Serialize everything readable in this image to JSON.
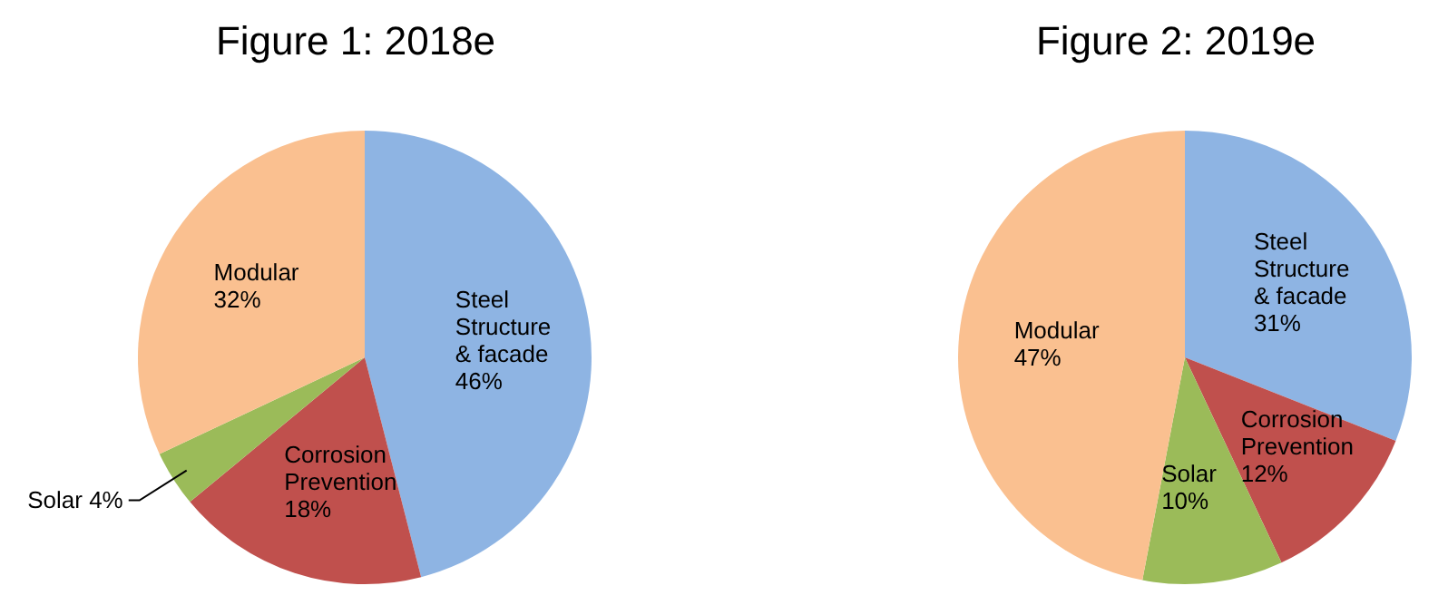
{
  "chart_data": [
    {
      "type": "pie",
      "title": "Figure 1: 2018e",
      "categories": [
        "Steel Structure & facade",
        "Corrosion Prevention",
        "Solar",
        "Modular"
      ],
      "values": [
        46,
        18,
        4,
        32
      ],
      "colors": [
        "#8eb4e3",
        "#c0504d",
        "#9bbb59",
        "#fac090"
      ],
      "value_labels": [
        "46%",
        "18%",
        "4%",
        "32%"
      ],
      "legend": false
    },
    {
      "type": "pie",
      "title": "Figure 2: 2019e",
      "categories": [
        "Steel Structure & facade",
        "Corrosion Prevention",
        "Solar",
        "Modular"
      ],
      "values": [
        31,
        12,
        10,
        47
      ],
      "colors": [
        "#8eb4e3",
        "#c0504d",
        "#9bbb59",
        "#fac090"
      ],
      "value_labels": [
        "31%",
        "12%",
        "10%",
        "47%"
      ],
      "legend": false
    }
  ]
}
